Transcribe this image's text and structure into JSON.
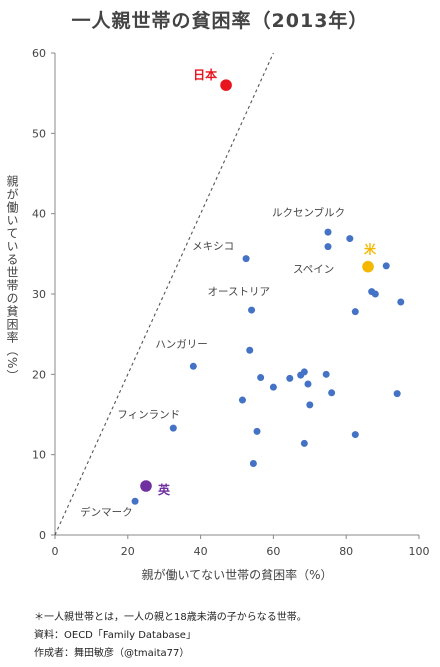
{
  "title": "一人親世帯の貧困率（2013年）",
  "chart_data": {
    "type": "scatter",
    "title": "一人親世帯の貧困率（2013年）",
    "xlabel": "親が働いてない世帯の貧困率（%）",
    "ylabel": "親が働いている世帯の貧困率（%）",
    "xlim": [
      0,
      100
    ],
    "ylim": [
      0,
      60
    ],
    "xticks": [
      0,
      20,
      40,
      60,
      80,
      100
    ],
    "yticks": [
      0,
      10,
      20,
      30,
      40,
      50,
      60
    ],
    "reference_line": "y = x",
    "highlighted": [
      {
        "label": "日本",
        "x": 47,
        "y": 56,
        "color": "#e8141e"
      },
      {
        "label": "米",
        "x": 86,
        "y": 33.4,
        "color": "#f5b800"
      },
      {
        "label": "英",
        "x": 25,
        "y": 6.1,
        "color": "#7030a0"
      }
    ],
    "labeled": [
      {
        "label": "ルクセンブルク",
        "x": 75,
        "y": 37.7
      },
      {
        "label": "メキシコ",
        "x": 52.5,
        "y": 34.4
      },
      {
        "label": "スペイン",
        "x": 75,
        "y": 35.9
      },
      {
        "label": "オーストリア",
        "x": 54,
        "y": 28
      },
      {
        "label": "ハンガリー",
        "x": 38,
        "y": 21
      },
      {
        "label": "フィンランド",
        "x": 32.5,
        "y": 13.3
      },
      {
        "label": "デンマーク",
        "x": 22,
        "y": 4.2
      }
    ],
    "points": [
      {
        "x": 81,
        "y": 36.9
      },
      {
        "x": 91,
        "y": 33.5
      },
      {
        "x": 87,
        "y": 30.3
      },
      {
        "x": 88,
        "y": 30
      },
      {
        "x": 82.5,
        "y": 27.8
      },
      {
        "x": 95,
        "y": 29
      },
      {
        "x": 53.5,
        "y": 23
      },
      {
        "x": 56.5,
        "y": 19.6
      },
      {
        "x": 60,
        "y": 18.4
      },
      {
        "x": 64.5,
        "y": 19.5
      },
      {
        "x": 67.5,
        "y": 19.9
      },
      {
        "x": 68.5,
        "y": 20.3
      },
      {
        "x": 69.5,
        "y": 18.8
      },
      {
        "x": 74.5,
        "y": 20
      },
      {
        "x": 76,
        "y": 17.7
      },
      {
        "x": 94,
        "y": 17.6
      },
      {
        "x": 51.5,
        "y": 16.8
      },
      {
        "x": 70,
        "y": 16.2
      },
      {
        "x": 55.5,
        "y": 12.9
      },
      {
        "x": 68.5,
        "y": 11.4
      },
      {
        "x": 82.5,
        "y": 12.5
      },
      {
        "x": 54.5,
        "y": 8.9
      }
    ]
  },
  "footnotes": {
    "note": "＊一人親世帯とは，一人の親と18歳未満の子からなる世帯。",
    "source": "資料：OECD「Family Database」",
    "author": "作成者：舞田敏彦（@tmaita77）"
  }
}
